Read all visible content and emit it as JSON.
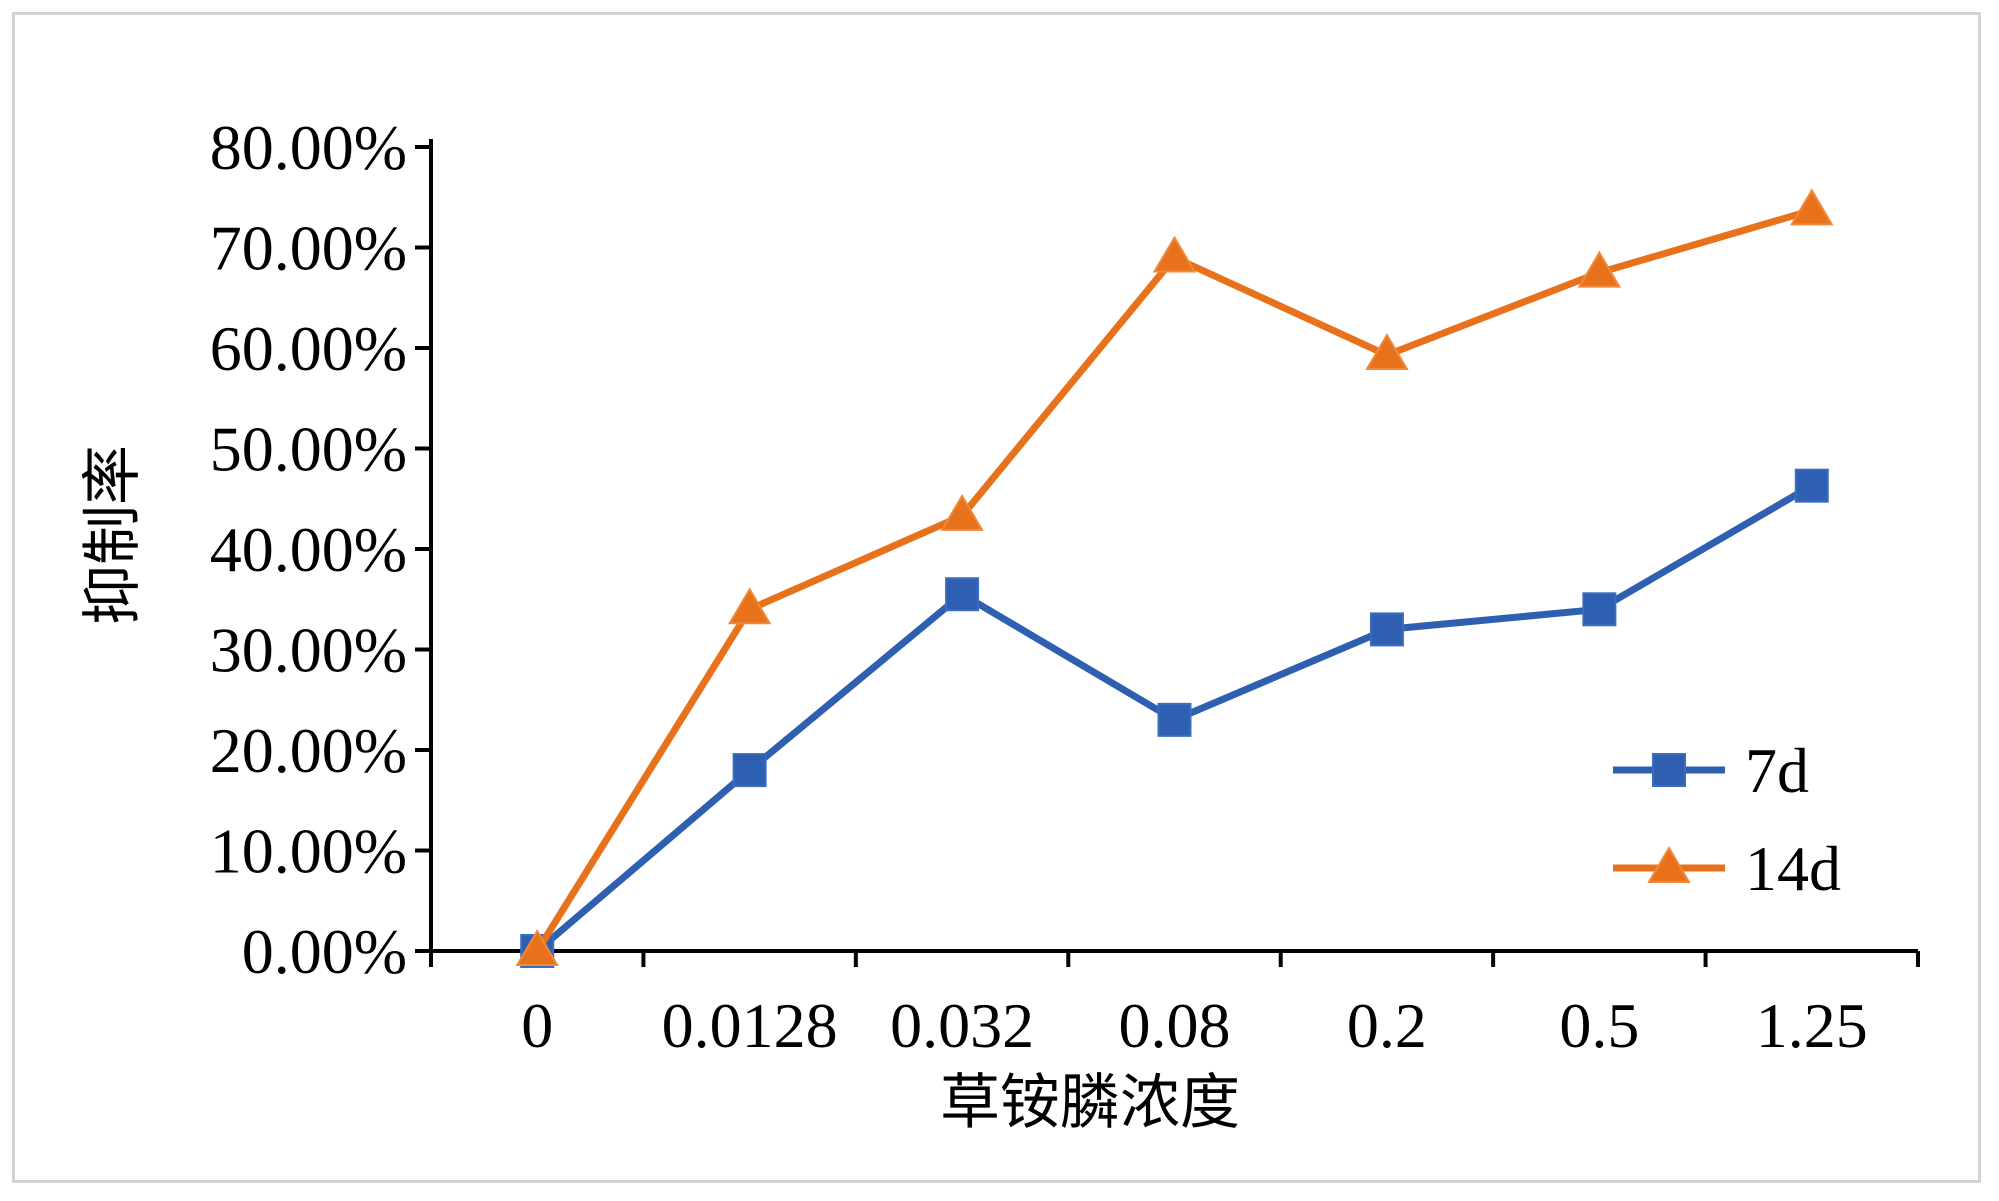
{
  "chart_data": {
    "type": "line",
    "title": "",
    "xlabel": "草铵膦浓度",
    "ylabel": "抑制率",
    "categories": [
      "0",
      "0.0128",
      "0.032",
      "0.08",
      "0.2",
      "0.5",
      "1.25"
    ],
    "y_ticks": [
      "0.00%",
      "10.00%",
      "20.00%",
      "30.00%",
      "40.00%",
      "50.00%",
      "60.00%",
      "70.00%",
      "80.00%"
    ],
    "ylim": [
      0,
      80
    ],
    "grid": false,
    "legend_position": "bottom-right",
    "series": [
      {
        "name": "7d",
        "color": "#2e5fb0",
        "marker": "square",
        "values": [
          0,
          18,
          35.5,
          23,
          32,
          34,
          46.3
        ]
      },
      {
        "name": "14d",
        "color": "#e8721c",
        "marker": "triangle",
        "values": [
          0,
          34,
          43.3,
          69,
          59.3,
          67.5,
          73.7
        ]
      }
    ]
  }
}
